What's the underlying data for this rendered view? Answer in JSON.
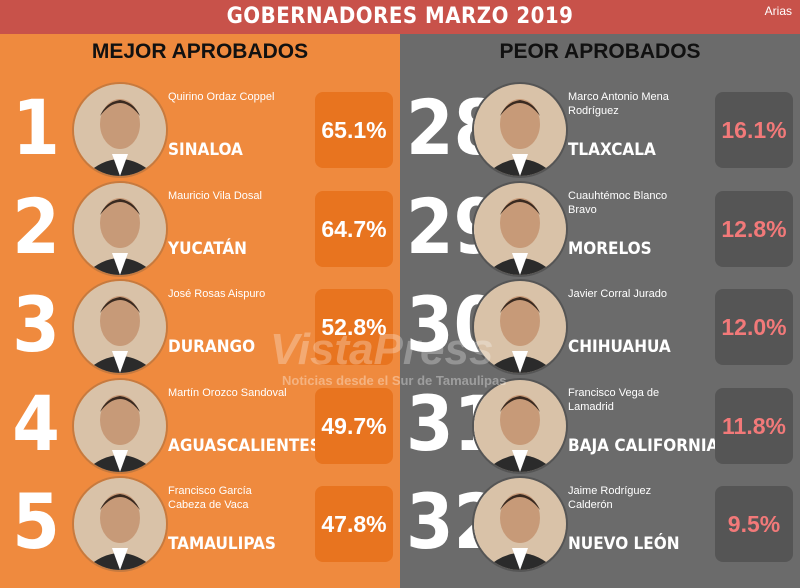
{
  "header": {
    "title": "GOBERNADORES MARZO 2019",
    "logo": "Arias"
  },
  "watermark": {
    "brand": "VistaPress",
    "tagline": "Noticias desde el Sur de Tamaulipas"
  },
  "best": {
    "title": "MEJOR APROBADOS",
    "rows": [
      {
        "rank": 1,
        "name": "Quirino Ordaz Coppel",
        "state": "SINALOA",
        "approval": "65.1%"
      },
      {
        "rank": 2,
        "name": "Mauricio Vila Dosal",
        "state": "YUCATÁN",
        "approval": "64.7%"
      },
      {
        "rank": 3,
        "name": "José Rosas Aispuro",
        "state": "DURANGO",
        "approval": "52.8%"
      },
      {
        "rank": 4,
        "name": "Martín Orozco Sandoval",
        "state": "AGUASCALIENTES",
        "approval": "49.7%"
      },
      {
        "rank": 5,
        "name": "Francisco García Cabeza de Vaca",
        "state": "TAMAULIPAS",
        "approval": "47.8%"
      }
    ]
  },
  "worst": {
    "title": "PEOR APROBADOS",
    "rows": [
      {
        "rank": 28,
        "name": "Marco Antonio Mena Rodríguez",
        "state": "TLAXCALA",
        "approval": "16.1%"
      },
      {
        "rank": 29,
        "name": "Cuauhtémoc Blanco Bravo",
        "state": "MORELOS",
        "approval": "12.8%"
      },
      {
        "rank": 30,
        "name": "Javier Corral Jurado",
        "state": "CHIHUAHUA",
        "approval": "12.0%"
      },
      {
        "rank": 31,
        "name": "Francisco Vega de Lamadrid",
        "state": "BAJA CALIFORNIA",
        "approval": "11.8%"
      },
      {
        "rank": 32,
        "name": "Jaime Rodríguez Calderón",
        "state": "NUEVO LEÓN",
        "approval": "9.5%"
      }
    ]
  }
}
